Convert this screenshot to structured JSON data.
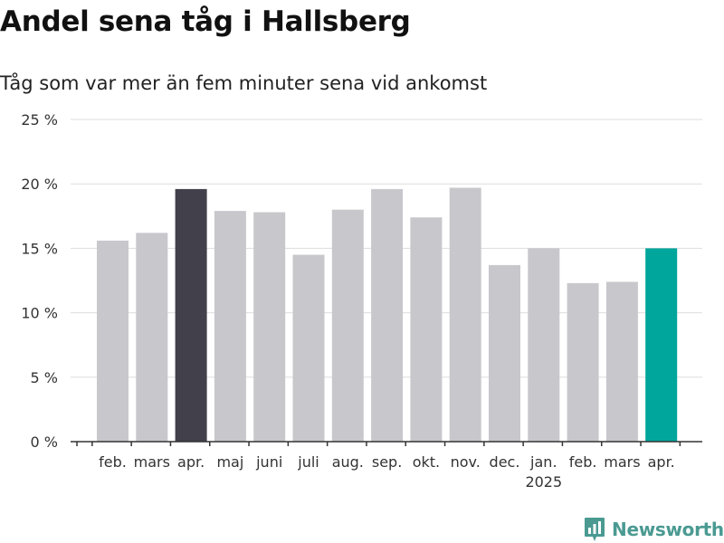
{
  "header": {
    "title": "Andel sena tåg i Hallsberg",
    "subtitle": "Tåg som var mer än fem minuter sena vid ankomst"
  },
  "brand": {
    "name": "Newsworthy"
  },
  "colors": {
    "bar_default": "#c8c7cc",
    "bar_highlight_previous": "#41404b",
    "bar_highlight_current": "#00a59c",
    "gridline": "#dddddd",
    "brand": "#4a9a92"
  },
  "chart_data": {
    "type": "bar",
    "title": "Andel sena tåg i Hallsberg",
    "subtitle": "Tåg som var mer än fem minuter sena vid ankomst",
    "xlabel": "",
    "ylabel": "",
    "ylim": [
      0,
      25
    ],
    "yticks": [
      {
        "value": 0,
        "label": "0 %"
      },
      {
        "value": 5,
        "label": "5 %"
      },
      {
        "value": 10,
        "label": "10 %"
      },
      {
        "value": 15,
        "label": "15 %"
      },
      {
        "value": 20,
        "label": "20 %"
      },
      {
        "value": 25,
        "label": "25 %"
      }
    ],
    "grid": true,
    "legend": "none",
    "categories": [
      "feb.",
      "mars",
      "apr.",
      "maj",
      "juni",
      "juli",
      "aug.",
      "sep.",
      "okt.",
      "nov.",
      "dec.",
      "jan.",
      "feb.",
      "mars",
      "apr."
    ],
    "year_labels": [
      {
        "index": 11,
        "label": "2025"
      }
    ],
    "values": [
      15.6,
      16.2,
      19.6,
      17.9,
      17.8,
      14.5,
      18.0,
      19.6,
      17.4,
      19.7,
      13.7,
      15.0,
      12.3,
      12.4,
      15.0
    ],
    "highlight": [
      {
        "index": 2,
        "color": "#41404b"
      },
      {
        "index": 14,
        "color": "#00a59c"
      }
    ]
  }
}
